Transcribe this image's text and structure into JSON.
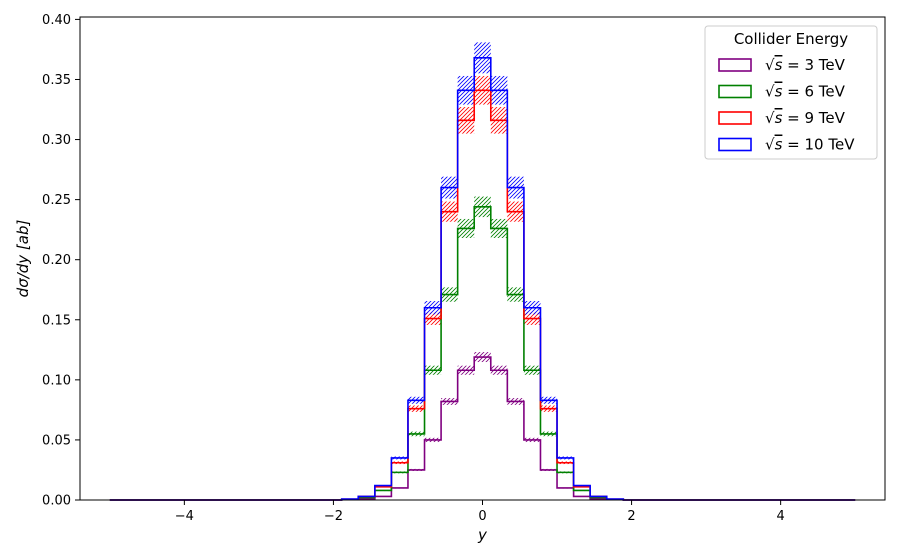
{
  "chart_data": {
    "type": "step",
    "title": "",
    "xlabel": "y",
    "ylabel": "dσ/dy [ab]",
    "xlim": [
      -5.4,
      5.4
    ],
    "ylim": [
      0.0,
      0.402
    ],
    "x_ticks": [
      -4,
      -2,
      0,
      2,
      4
    ],
    "x_tick_labels": [
      "−4",
      "−2",
      "0",
      "2",
      "4"
    ],
    "y_ticks": [
      0.0,
      0.05,
      0.1,
      0.15,
      0.2,
      0.25,
      0.3,
      0.35,
      0.4
    ],
    "y_tick_labels": [
      "0.00",
      "0.05",
      "0.10",
      "0.15",
      "0.20",
      "0.25",
      "0.30",
      "0.35",
      "0.40"
    ],
    "grid": false,
    "legend": {
      "title": "Collider Energy",
      "placement": "top-right"
    },
    "bin_edges": [
      -5.0,
      -4.7778,
      -4.5556,
      -4.3333,
      -4.1111,
      -3.8889,
      -3.6667,
      -3.4444,
      -3.2222,
      -3.0,
      -2.7778,
      -2.5556,
      -2.3333,
      -2.1111,
      -1.8889,
      -1.6667,
      -1.4444,
      -1.2222,
      -1.0,
      -0.7778,
      -0.5556,
      -0.3333,
      -0.1111,
      0.1111,
      0.3333,
      0.5556,
      0.7778,
      1.0,
      1.2222,
      1.4444,
      1.6667,
      1.8889,
      2.1111,
      2.3333,
      2.5556,
      2.7778,
      3.0,
      3.2222,
      3.4444,
      3.6667,
      3.8889,
      4.1111,
      4.3333,
      4.5556,
      4.7778,
      5.0
    ],
    "series": [
      {
        "name": "√s = 3 TeV",
        "label_prefix": "√",
        "label_var": "s",
        "label_value": " = 3 TeV",
        "color": "#800080",
        "values": [
          0,
          0,
          0,
          0,
          0,
          0,
          0,
          0,
          0,
          0,
          0,
          0,
          0,
          0,
          0.0002,
          0.001,
          0.003,
          0.01,
          0.025,
          0.05,
          0.082,
          0.108,
          0.119,
          0.108,
          0.082,
          0.05,
          0.025,
          0.01,
          0.003,
          0.001,
          0.0002,
          0,
          0,
          0,
          0,
          0,
          0,
          0,
          0,
          0,
          0,
          0,
          0,
          0,
          0
        ],
        "uncertainty": 0.035
      },
      {
        "name": "√s = 6 TeV",
        "label_prefix": "√",
        "label_var": "s",
        "label_value": " = 6 TeV",
        "color": "#008000",
        "values": [
          0,
          0,
          0,
          0,
          0,
          0,
          0,
          0,
          0,
          0,
          0,
          0,
          0,
          0,
          0.0005,
          0.002,
          0.008,
          0.023,
          0.055,
          0.108,
          0.171,
          0.226,
          0.244,
          0.226,
          0.171,
          0.108,
          0.055,
          0.023,
          0.008,
          0.002,
          0.0005,
          0,
          0,
          0,
          0,
          0,
          0,
          0,
          0,
          0,
          0,
          0,
          0,
          0,
          0
        ],
        "uncertainty": 0.035
      },
      {
        "name": "√s = 9 TeV",
        "label_prefix": "√",
        "label_var": "s",
        "label_value": " = 9 TeV",
        "color": "#ff0000",
        "values": [
          0,
          0,
          0,
          0,
          0,
          0,
          0,
          0,
          0,
          0,
          0,
          0,
          0,
          0,
          0.0007,
          0.003,
          0.011,
          0.031,
          0.076,
          0.151,
          0.24,
          0.316,
          0.341,
          0.316,
          0.24,
          0.151,
          0.076,
          0.031,
          0.011,
          0.003,
          0.0007,
          0,
          0,
          0,
          0,
          0,
          0,
          0,
          0,
          0,
          0,
          0,
          0,
          0,
          0
        ],
        "uncertainty": 0.035
      },
      {
        "name": "√s = 10 TeV",
        "label_prefix": "√",
        "label_var": "s",
        "label_value": " = 10 TeV",
        "color": "#0000ff",
        "values": [
          0,
          0,
          0,
          0,
          0,
          0,
          0,
          0,
          0,
          0,
          0,
          0,
          0,
          0,
          0.0008,
          0.003,
          0.012,
          0.035,
          0.083,
          0.16,
          0.26,
          0.341,
          0.368,
          0.341,
          0.26,
          0.16,
          0.083,
          0.035,
          0.012,
          0.003,
          0.0008,
          0,
          0,
          0,
          0,
          0,
          0,
          0,
          0,
          0,
          0,
          0,
          0,
          0,
          0
        ],
        "uncertainty": 0.035
      }
    ]
  }
}
